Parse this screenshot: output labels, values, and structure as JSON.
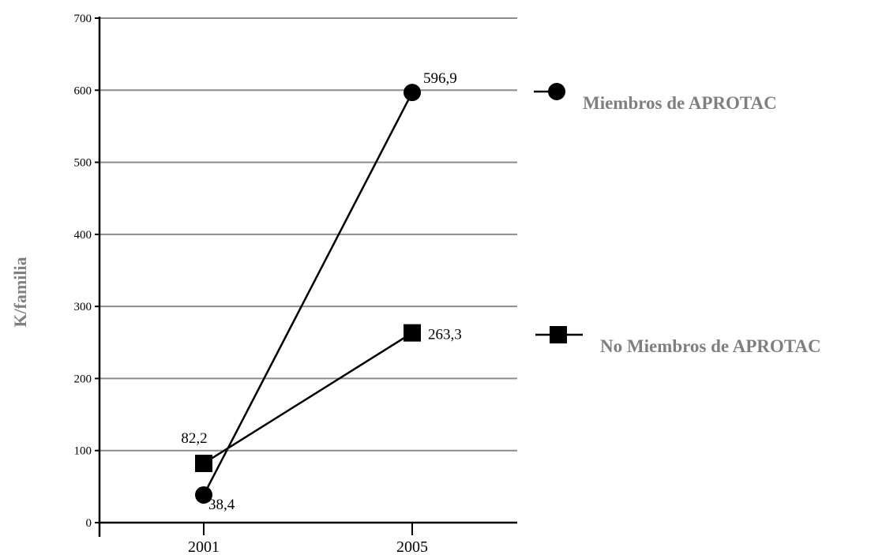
{
  "chart_data": {
    "type": "line",
    "title": "",
    "xlabel": "",
    "ylabel": "K/familia",
    "categories": [
      "2001",
      "2005"
    ],
    "ylim": [
      0,
      700
    ],
    "yticks": [
      0,
      100,
      200,
      300,
      400,
      500,
      600,
      700
    ],
    "grid": true,
    "legend_position": "right",
    "series": [
      {
        "name": "Miembros de APROTAC",
        "marker": "circle",
        "values": [
          38.4,
          596.9
        ],
        "labels": [
          "38,4",
          "596,9"
        ]
      },
      {
        "name": "No Miembros de APROTAC",
        "marker": "square",
        "values": [
          82.2,
          263.3
        ],
        "labels": [
          "82,2",
          "263,3"
        ]
      }
    ],
    "colors": {
      "line": "#000000",
      "grid": "#8c8c8c",
      "legend_text": "#7f7f7f"
    }
  }
}
